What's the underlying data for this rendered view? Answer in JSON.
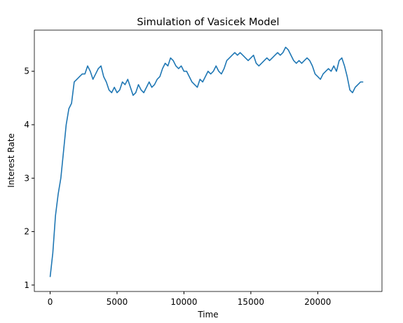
{
  "chart_data": {
    "type": "line",
    "title": "Simulation of Vasicek Model",
    "x_label": "Time",
    "y_label": "Interest Rate",
    "x": [
      0,
      200,
      400,
      600,
      800,
      1000,
      1200,
      1400,
      1600,
      1800,
      2000,
      2200,
      2400,
      2600,
      2800,
      3000,
      3200,
      3400,
      3600,
      3800,
      4000,
      4200,
      4400,
      4600,
      4800,
      5000,
      5200,
      5400,
      5600,
      5800,
      6000,
      6200,
      6400,
      6600,
      6800,
      7000,
      7200,
      7400,
      7600,
      7800,
      8000,
      8200,
      8400,
      8600,
      8800,
      9000,
      9200,
      9400,
      9600,
      9800,
      10000,
      10200,
      10400,
      10600,
      10800,
      11000,
      11200,
      11400,
      11600,
      11800,
      12000,
      12200,
      12400,
      12600,
      12800,
      13000,
      13200,
      13400,
      13600,
      13800,
      14000,
      14200,
      14400,
      14600,
      14800,
      15000,
      15200,
      15400,
      15600,
      15800,
      16000,
      16200,
      16400,
      16600,
      16800,
      17000,
      17200,
      17400,
      17600,
      17800,
      18000,
      18200,
      18400,
      18600,
      18800,
      19000,
      19200,
      19400,
      19600,
      19800,
      20000,
      20200,
      20400,
      20600,
      20800,
      21000,
      21200,
      21400,
      21600,
      21800,
      22000,
      22200,
      22400,
      22600,
      22800,
      23000,
      23200,
      23400
    ],
    "series": [
      {
        "name": "Interest Rate",
        "color": "#1f77b4",
        "values": [
          1.15,
          1.6,
          2.3,
          2.7,
          3.0,
          3.5,
          4.0,
          4.3,
          4.4,
          4.8,
          4.85,
          4.9,
          4.95,
          4.95,
          5.1,
          5.0,
          4.85,
          4.95,
          5.05,
          5.1,
          4.9,
          4.8,
          4.65,
          4.6,
          4.7,
          4.6,
          4.65,
          4.8,
          4.75,
          4.85,
          4.7,
          4.55,
          4.6,
          4.75,
          4.65,
          4.6,
          4.7,
          4.8,
          4.7,
          4.75,
          4.85,
          4.9,
          5.05,
          5.15,
          5.1,
          5.25,
          5.2,
          5.1,
          5.05,
          5.1,
          5.0,
          5.0,
          4.9,
          4.8,
          4.75,
          4.7,
          4.85,
          4.8,
          4.9,
          5.0,
          4.95,
          5.0,
          5.1,
          5.0,
          4.95,
          5.05,
          5.2,
          5.25,
          5.3,
          5.35,
          5.3,
          5.35,
          5.3,
          5.25,
          5.2,
          5.25,
          5.3,
          5.15,
          5.1,
          5.15,
          5.2,
          5.25,
          5.2,
          5.25,
          5.3,
          5.35,
          5.3,
          5.35,
          5.45,
          5.4,
          5.3,
          5.2,
          5.15,
          5.2,
          5.15,
          5.2,
          5.25,
          5.2,
          5.1,
          4.95,
          4.9,
          4.85,
          4.95,
          5.0,
          5.05,
          5.0,
          5.1,
          5.0,
          5.2,
          5.25,
          5.1,
          4.9,
          4.65,
          4.6,
          4.7,
          4.75,
          4.8,
          4.8
        ]
      }
    ],
    "xlim": [
      -1180,
      24800
    ],
    "ylim": [
      0.88,
      5.77
    ],
    "xticks": [
      0,
      5000,
      10000,
      15000,
      20000
    ],
    "yticks": [
      1,
      2,
      3,
      4,
      5
    ]
  }
}
